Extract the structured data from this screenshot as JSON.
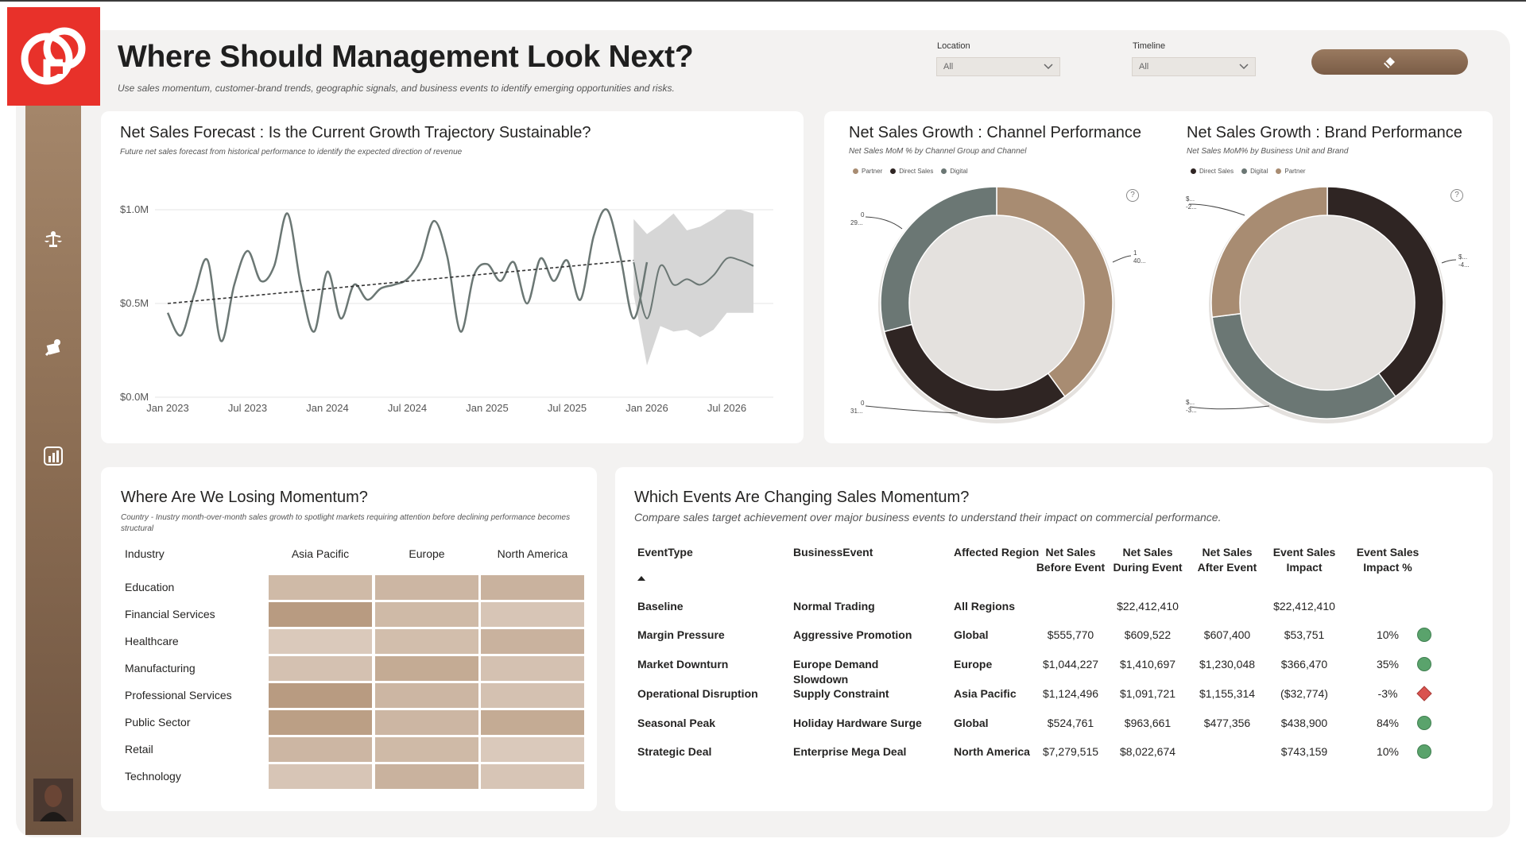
{
  "header": {
    "title": "Where Should Management Look Next?",
    "subtitle": "Use sales momentum, customer-brand trends, geographic signals, and business events to identify emerging opportunities and risks."
  },
  "slicers": {
    "location": {
      "label": "Location",
      "value": "All"
    },
    "timeline": {
      "label": "Timeline",
      "value": "All"
    }
  },
  "colors": {
    "accent_red": "#e8312a",
    "brand_brown": "#a4866a",
    "partner": "#a88c72",
    "direct_sales": "#2f2523",
    "digital": "#6b7774",
    "good": "#5aa36c",
    "bad": "#d9534f"
  },
  "forecast": {
    "title": "Net Sales Forecast : Is the Current Growth Trajectory Sustainable?",
    "subtitle": "Future net sales forecast from historical performance to identify the expected direction of revenue"
  },
  "channel": {
    "title": "Net Sales Growth : Channel Performance",
    "subtitle": "Net Sales MoM % by Channel Group and Channel",
    "legend": [
      {
        "name": "Partner",
        "color": "#a88c72"
      },
      {
        "name": "Direct Sales",
        "color": "#2f2523"
      },
      {
        "name": "Digital",
        "color": "#6b7774"
      }
    ],
    "callouts": [
      "0",
      "29...",
      "1",
      "40...",
      "0",
      "31..."
    ]
  },
  "brand": {
    "title": "Net Sales Growth : Brand Performance",
    "subtitle": "Net Sales MoM% by Business Unit and Brand",
    "legend": [
      {
        "name": "Direct Sales",
        "color": "#2f2523"
      },
      {
        "name": "Digital",
        "color": "#6b7774"
      },
      {
        "name": "Partner",
        "color": "#a88c72"
      }
    ],
    "callouts": [
      "$...",
      "-2...",
      "$...",
      "-4...",
      "$...",
      "-3..."
    ]
  },
  "momentum": {
    "title": "Where Are We Losing Momentum?",
    "subtitle": "Country - Inustry month-over-month sales growth to spotlight markets requiring attention before declining performance becomes structural",
    "row_header": "Industry",
    "columns": [
      "Asia Pacific",
      "Europe",
      "North America"
    ],
    "rows": [
      "Education",
      "Financial Services",
      "Healthcare",
      "Manufacturing",
      "Professional Services",
      "Public Sector",
      "Retail",
      "Technology"
    ],
    "intensity": [
      [
        0.45,
        0.5,
        0.55
      ],
      [
        0.85,
        0.45,
        0.3
      ],
      [
        0.25,
        0.4,
        0.55
      ],
      [
        0.35,
        0.65,
        0.35
      ],
      [
        0.85,
        0.5,
        0.35
      ],
      [
        0.8,
        0.5,
        0.65
      ],
      [
        0.5,
        0.45,
        0.25
      ],
      [
        0.3,
        0.55,
        0.3
      ]
    ]
  },
  "events": {
    "title": "Which Events Are Changing Sales Momentum?",
    "subtitle": "Compare sales target achievement over major business events to understand their impact on commercial performance.",
    "headers": [
      "EventType",
      "BusinessEvent",
      "Affected Region",
      "Net Sales Before Event",
      "Net Sales During Event",
      "Net Sales After Event",
      "Event Sales Impact",
      "Event Sales Impact %"
    ],
    "rows": [
      {
        "type": "Baseline",
        "event": "Normal Trading",
        "region": "All Regions",
        "before": "",
        "during": "$22,412,410",
        "after": "",
        "impact": "$22,412,410",
        "pct": "",
        "status": "none"
      },
      {
        "type": "Margin Pressure",
        "event": "Aggressive Promotion",
        "region": "Global",
        "before": "$555,770",
        "during": "$609,522",
        "after": "$607,400",
        "impact": "$53,751",
        "pct": "10%",
        "status": "good"
      },
      {
        "type": "Market Downturn",
        "event": "Europe Demand Slowdown",
        "region": "Europe",
        "before": "$1,044,227",
        "during": "$1,410,697",
        "after": "$1,230,048",
        "impact": "$366,470",
        "pct": "35%",
        "status": "good"
      },
      {
        "type": "Operational Disruption",
        "event": "Supply Constraint",
        "region": "Asia Pacific",
        "before": "$1,124,496",
        "during": "$1,091,721",
        "after": "$1,155,314",
        "impact": "($32,774)",
        "pct": "-3%",
        "status": "bad"
      },
      {
        "type": "Seasonal Peak",
        "event": "Holiday Hardware Surge",
        "region": "Global",
        "before": "$524,761",
        "during": "$963,661",
        "after": "$477,356",
        "impact": "$438,900",
        "pct": "84%",
        "status": "good"
      },
      {
        "type": "Strategic Deal",
        "event": "Enterprise Mega Deal",
        "region": "North America",
        "before": "$7,279,515",
        "during": "$8,022,674",
        "after": "",
        "impact": "$743,159",
        "pct": "10%",
        "status": "good"
      }
    ]
  },
  "chart_data": [
    {
      "type": "line",
      "title": "Net Sales Forecast : Is the Current Growth Trajectory Sustainable?",
      "y_ticks": [
        "$0.0M",
        "$0.5M",
        "$1.0M"
      ],
      "ylim": [
        0,
        1.0
      ],
      "x_ticks": [
        "Jan 2023",
        "Jul 2023",
        "Jan 2024",
        "Jul 2024",
        "Jan 2025",
        "Jul 2025",
        "Jan 2026",
        "Jul 2026"
      ],
      "actual_x_months": [
        0,
        1,
        2,
        3,
        4,
        5,
        6,
        7,
        8,
        9,
        10,
        11,
        12,
        13,
        14,
        15,
        16,
        17,
        18,
        19,
        20,
        21,
        22,
        23,
        24,
        25,
        26,
        27,
        28,
        29,
        30,
        31,
        32,
        33,
        34,
        35,
        36
      ],
      "actual": [
        0.45,
        0.33,
        0.55,
        0.73,
        0.3,
        0.6,
        0.78,
        0.62,
        0.7,
        0.98,
        0.6,
        0.35,
        0.67,
        0.42,
        0.6,
        0.52,
        0.58,
        0.6,
        0.63,
        0.73,
        0.94,
        0.75,
        0.35,
        0.65,
        0.71,
        0.62,
        0.72,
        0.5,
        0.74,
        0.62,
        0.73,
        0.52,
        0.86,
        1.0,
        0.75,
        0.42,
        0.72
      ],
      "forecast_x_months": [
        35,
        36,
        37,
        38,
        39,
        40,
        41,
        42,
        43,
        44
      ],
      "forecast": [
        0.72,
        0.42,
        0.7,
        0.6,
        0.63,
        0.6,
        0.65,
        0.74,
        0.73,
        0.7
      ],
      "forecast_upper": [
        0.95,
        0.87,
        0.92,
        0.98,
        0.89,
        0.91,
        0.95,
        1.0,
        1.0,
        0.98
      ],
      "forecast_lower": [
        0.55,
        0.17,
        0.38,
        0.35,
        0.36,
        0.32,
        0.36,
        0.45,
        0.45,
        0.45
      ],
      "trend": [
        0.5,
        0.73
      ]
    },
    {
      "type": "pie",
      "title": "Net Sales Growth : Channel Performance",
      "series": [
        {
          "name": "Partner",
          "value": 40
        },
        {
          "name": "Direct Sales",
          "value": 31
        },
        {
          "name": "Digital",
          "value": 29
        }
      ]
    },
    {
      "type": "pie",
      "title": "Net Sales Growth : Brand Performance",
      "series": [
        {
          "name": "Direct Sales",
          "value": 40
        },
        {
          "name": "Digital",
          "value": 33
        },
        {
          "name": "Partner",
          "value": 27
        }
      ]
    }
  ]
}
